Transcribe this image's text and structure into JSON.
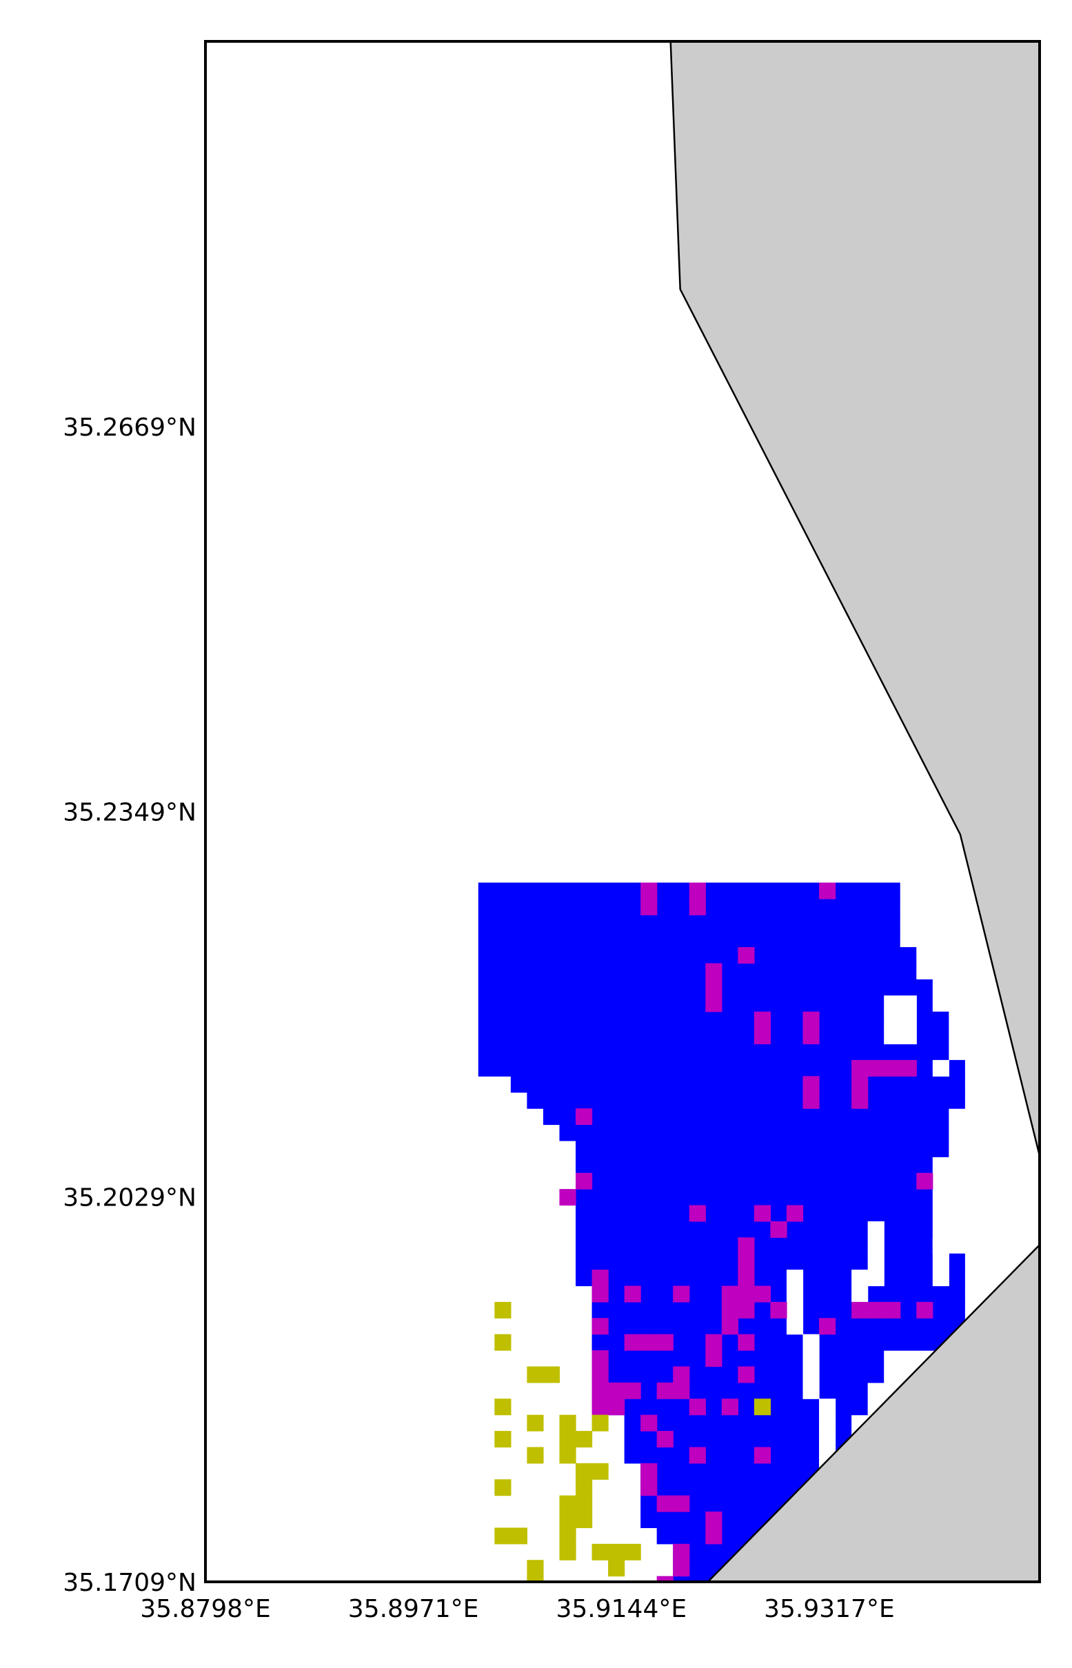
{
  "map": {
    "extent": {
      "lon_min": 35.8798,
      "lon_max": 35.9492,
      "lat_min": 35.1709,
      "lat_max": 35.2989
    },
    "colors": {
      "land": "#cccccc",
      "water": "#ffffff",
      "cls_a": "#0000ff",
      "cls_b": "#bf00bf",
      "cls_c": "#bfbf00",
      "border": "#000000"
    },
    "axes": {
      "x_ticks": [
        {
          "value": 35.8798,
          "label": "35.8798°E"
        },
        {
          "value": 35.8971,
          "label": "35.8971°E"
        },
        {
          "value": 35.9144,
          "label": "35.9144°E"
        },
        {
          "value": 35.9317,
          "label": "35.9317°E"
        }
      ],
      "y_ticks": [
        {
          "value": 35.2669,
          "label": "35.2669°N"
        },
        {
          "value": 35.2349,
          "label": "35.2349°N"
        },
        {
          "value": 35.2029,
          "label": "35.2029°N"
        },
        {
          "value": 35.1709,
          "label": "35.1709°N"
        }
      ]
    },
    "land_polygons": [
      [
        [
          35.9185,
          35.2989
        ],
        [
          35.9492,
          35.2989
        ],
        [
          35.9492,
          35.2063
        ],
        [
          35.9426,
          35.233
        ],
        [
          35.9193,
          35.2783
        ]
      ],
      [
        [
          35.9492,
          35.1989
        ],
        [
          35.9216,
          35.1709
        ],
        [
          35.9492,
          35.1709
        ]
      ]
    ],
    "grid": {
      "lon0": 35.9025,
      "lat0": 35.229,
      "dlon": 0.00135,
      "dlat": 0.00134,
      "blue_rows": [
        [
          0,
          25
        ],
        [
          0,
          25
        ],
        [
          0,
          25
        ],
        [
          0,
          25
        ],
        [
          0,
          26
        ],
        [
          0,
          26
        ],
        [
          0,
          27
        ],
        [
          0,
          27
        ],
        [
          0,
          28
        ],
        [
          0,
          28
        ],
        [
          0,
          28
        ],
        [
          0,
          29
        ],
        [
          2,
          29
        ],
        [
          3,
          29
        ],
        [
          4,
          28
        ],
        [
          5,
          28
        ],
        [
          6,
          28
        ],
        [
          6,
          27
        ],
        [
          6,
          27
        ],
        [
          6,
          27
        ],
        [
          6,
          27
        ],
        [
          6,
          27
        ],
        [
          6,
          27
        ],
        [
          6,
          29
        ],
        [
          6,
          29
        ],
        [
          7,
          29
        ],
        [
          7,
          29
        ],
        [
          7,
          29
        ],
        [
          7,
          29
        ],
        [
          8,
          24
        ],
        [
          8,
          24
        ],
        [
          8,
          23
        ],
        [
          8,
          23
        ],
        [
          9,
          22
        ],
        [
          9,
          22
        ],
        [
          9,
          22
        ],
        [
          10,
          22
        ],
        [
          10,
          21
        ],
        [
          10,
          20
        ],
        [
          10,
          20
        ],
        [
          11,
          19
        ],
        [
          12,
          18
        ],
        [
          12,
          18
        ],
        [
          12,
          17
        ],
        [
          13,
          16
        ],
        [
          13,
          16
        ],
        [
          13,
          15
        ],
        [
          14,
          15
        ],
        [
          15,
          15
        ]
      ],
      "white_holes": [
        [
          7,
          25
        ],
        [
          7,
          26
        ],
        [
          8,
          25
        ],
        [
          8,
          26
        ],
        [
          9,
          25
        ],
        [
          9,
          26
        ],
        [
          11,
          28
        ],
        [
          22,
          28
        ],
        [
          23,
          28
        ],
        [
          24,
          28
        ],
        [
          21,
          24
        ],
        [
          22,
          24
        ],
        [
          23,
          24
        ],
        [
          24,
          24
        ],
        [
          24,
          23
        ],
        [
          25,
          23
        ],
        [
          24,
          19
        ],
        [
          25,
          19
        ],
        [
          26,
          19
        ],
        [
          27,
          19
        ],
        [
          28,
          20
        ],
        [
          29,
          20
        ],
        [
          30,
          20
        ],
        [
          31,
          20
        ],
        [
          32,
          21
        ],
        [
          33,
          21
        ],
        [
          34,
          21
        ],
        [
          35,
          21
        ],
        [
          36,
          21
        ],
        [
          37,
          22
        ],
        [
          38,
          21
        ],
        [
          39,
          21
        ],
        [
          40,
          21
        ],
        [
          41,
          21
        ],
        [
          42,
          20
        ],
        [
          43,
          19
        ],
        [
          44,
          18
        ],
        [
          45,
          17
        ],
        [
          46,
          17
        ],
        [
          47,
          16
        ],
        [
          48,
          16
        ]
      ],
      "magenta_cells": [
        [
          0,
          10
        ],
        [
          1,
          10
        ],
        [
          0,
          13
        ],
        [
          1,
          13
        ],
        [
          0,
          21
        ],
        [
          4,
          16
        ],
        [
          5,
          14
        ],
        [
          6,
          14
        ],
        [
          7,
          14
        ],
        [
          8,
          17
        ],
        [
          8,
          20
        ],
        [
          9,
          20
        ],
        [
          9,
          17
        ],
        [
          11,
          23
        ],
        [
          11,
          24
        ],
        [
          11,
          25
        ],
        [
          11,
          26
        ],
        [
          12,
          23
        ],
        [
          13,
          23
        ],
        [
          12,
          20
        ],
        [
          13,
          20
        ],
        [
          14,
          6
        ],
        [
          18,
          6
        ],
        [
          18,
          27
        ],
        [
          19,
          5
        ],
        [
          20,
          13
        ],
        [
          20,
          17
        ],
        [
          20,
          19
        ],
        [
          21,
          18
        ],
        [
          22,
          16
        ],
        [
          23,
          16
        ],
        [
          24,
          16
        ],
        [
          24,
          7
        ],
        [
          25,
          7
        ],
        [
          25,
          9
        ],
        [
          25,
          12
        ],
        [
          25,
          15
        ],
        [
          25,
          16
        ],
        [
          25,
          17
        ],
        [
          26,
          15
        ],
        [
          26,
          16
        ],
        [
          26,
          18
        ],
        [
          26,
          23
        ],
        [
          26,
          27
        ],
        [
          26,
          24
        ],
        [
          26,
          25
        ],
        [
          27,
          7
        ],
        [
          27,
          15
        ],
        [
          27,
          21
        ],
        [
          28,
          14
        ],
        [
          28,
          9
        ],
        [
          28,
          10
        ],
        [
          28,
          11
        ],
        [
          28,
          16
        ],
        [
          29,
          7
        ],
        [
          29,
          14
        ],
        [
          30,
          7
        ],
        [
          30,
          12
        ],
        [
          30,
          16
        ],
        [
          31,
          7
        ],
        [
          31,
          8
        ],
        [
          31,
          9
        ],
        [
          31,
          11
        ],
        [
          31,
          12
        ],
        [
          32,
          7
        ],
        [
          32,
          8
        ],
        [
          32,
          13
        ],
        [
          32,
          15
        ],
        [
          33,
          10
        ],
        [
          34,
          11
        ],
        [
          35,
          13
        ],
        [
          35,
          17
        ],
        [
          36,
          10
        ],
        [
          37,
          10
        ],
        [
          38,
          11
        ],
        [
          38,
          12
        ],
        [
          39,
          14
        ],
        [
          40,
          14
        ],
        [
          41,
          12
        ],
        [
          42,
          12
        ],
        [
          43,
          11
        ],
        [
          44,
          12
        ],
        [
          45,
          12
        ]
      ],
      "yellow_cells": [
        [
          26,
          1
        ],
        [
          28,
          1
        ],
        [
          30,
          3
        ],
        [
          30,
          4
        ],
        [
          32,
          1
        ],
        [
          33,
          3
        ],
        [
          33,
          5
        ],
        [
          33,
          7
        ],
        [
          34,
          1
        ],
        [
          34,
          5
        ],
        [
          34,
          6
        ],
        [
          35,
          3
        ],
        [
          35,
          5
        ],
        [
          36,
          6
        ],
        [
          36,
          7
        ],
        [
          37,
          1
        ],
        [
          37,
          6
        ],
        [
          38,
          5
        ],
        [
          38,
          6
        ],
        [
          39,
          5
        ],
        [
          39,
          6
        ],
        [
          40,
          1
        ],
        [
          40,
          2
        ],
        [
          40,
          5
        ],
        [
          41,
          5
        ],
        [
          41,
          7
        ],
        [
          41,
          8
        ],
        [
          41,
          9
        ],
        [
          42,
          3
        ],
        [
          42,
          8
        ],
        [
          43,
          3
        ],
        [
          44,
          2
        ],
        [
          44,
          9
        ],
        [
          44,
          10
        ],
        [
          45,
          9
        ],
        [
          46,
          9
        ],
        [
          47,
          6
        ],
        [
          47,
          10
        ],
        [
          47,
          11
        ],
        [
          48,
          9
        ],
        [
          32,
          17
        ]
      ]
    }
  }
}
